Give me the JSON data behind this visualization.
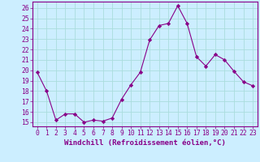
{
  "x": [
    0,
    1,
    2,
    3,
    4,
    5,
    6,
    7,
    8,
    9,
    10,
    11,
    12,
    13,
    14,
    15,
    16,
    17,
    18,
    19,
    20,
    21,
    22,
    23
  ],
  "y": [
    19.8,
    18.0,
    15.2,
    15.8,
    15.8,
    15.0,
    15.2,
    15.1,
    15.4,
    17.2,
    18.6,
    19.8,
    22.9,
    24.3,
    24.5,
    26.2,
    24.5,
    21.3,
    20.4,
    21.5,
    21.0,
    19.9,
    18.9,
    18.5
  ],
  "line_color": "#880088",
  "marker": "D",
  "marker_size": 2.2,
  "bg_color": "#cceeff",
  "grid_color": "#aadddd",
  "xlabel": "Windchill (Refroidissement éolien,°C)",
  "ylabel_ticks": [
    15,
    16,
    17,
    18,
    19,
    20,
    21,
    22,
    23,
    24,
    25,
    26
  ],
  "ylim": [
    14.6,
    26.6
  ],
  "xlim": [
    -0.5,
    23.5
  ],
  "axis_color": "#880088",
  "tick_color": "#880088",
  "label_fontsize": 6.5,
  "tick_fontsize": 5.8
}
